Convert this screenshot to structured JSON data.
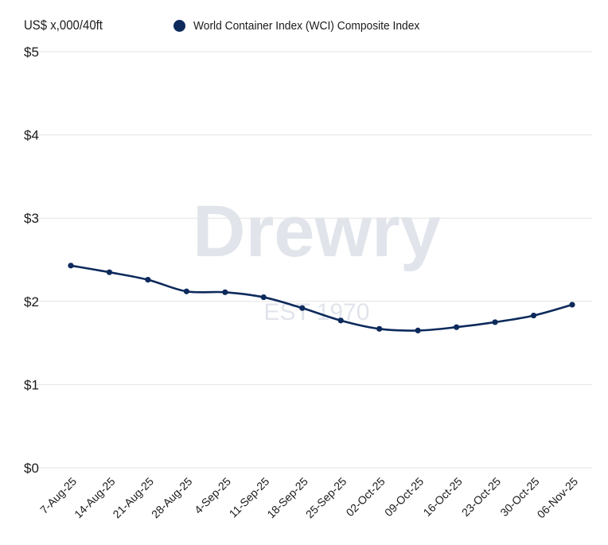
{
  "chart_data": {
    "type": "line",
    "title": "",
    "ylabel": "US$ x,000/40ft",
    "xlabel": "",
    "categories": [
      "7-Aug-25",
      "14-Aug-25",
      "21-Aug-25",
      "28-Aug-25",
      "4-Sep-25",
      "11-Sep-25",
      "18-Sep-25",
      "25-Sep-25",
      "02-Oct-25",
      "09-Oct-25",
      "16-Oct-25",
      "23-Oct-25",
      "30-Oct-25",
      "06-Nov-25"
    ],
    "series": [
      {
        "name": "World Container Index (WCI) Composite Index",
        "color": "#0d2a5c",
        "values": [
          2.43,
          2.35,
          2.26,
          2.12,
          2.11,
          2.05,
          1.92,
          1.77,
          1.67,
          1.65,
          1.69,
          1.75,
          1.83,
          1.96
        ]
      }
    ],
    "ylim": [
      0,
      5
    ],
    "yticks": [
      0,
      1,
      2,
      3,
      4,
      5
    ],
    "ytick_labels": [
      "$0",
      "$1",
      "$2",
      "$3",
      "$4",
      "$5"
    ],
    "grid": true,
    "legend_position": "top",
    "watermark": "Drewry EST 1970"
  }
}
